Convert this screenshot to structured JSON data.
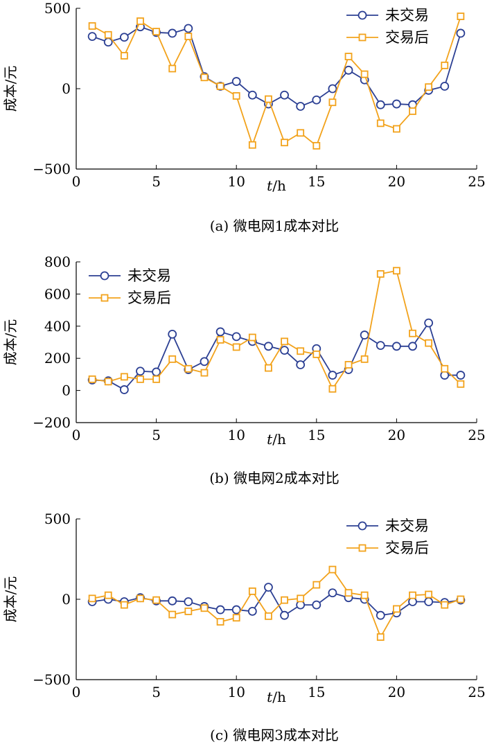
{
  "colors": {
    "series_1": "#2b3f93",
    "series_2": "#f2a21b",
    "axis": "#000000"
  },
  "chart_data": [
    {
      "type": "line",
      "caption": "(a)  微电网1成本对比",
      "xlabel": "t/h",
      "xlabel_var": "t",
      "xlabel_unit": "/h",
      "ylabel": "成本/元",
      "xlim": [
        0,
        25
      ],
      "ylim": [
        -500,
        500
      ],
      "xticks": [
        0,
        5,
        10,
        15,
        20,
        25
      ],
      "yticks": [
        -500,
        0,
        500
      ],
      "legend_position": "top-right",
      "x": [
        1,
        2,
        3,
        4,
        5,
        6,
        7,
        8,
        9,
        10,
        11,
        12,
        13,
        14,
        15,
        16,
        17,
        18,
        19,
        20,
        21,
        22,
        23,
        24
      ],
      "series": [
        {
          "name": "未交易",
          "marker": "circle",
          "values": [
            325,
            290,
            320,
            385,
            350,
            345,
            375,
            75,
            15,
            45,
            -40,
            -95,
            -40,
            -110,
            -70,
            0,
            115,
            55,
            -100,
            -95,
            -100,
            -10,
            15,
            345
          ]
        },
        {
          "name": "交易后",
          "marker": "square",
          "values": [
            390,
            335,
            205,
            420,
            355,
            125,
            325,
            70,
            15,
            -45,
            -350,
            -65,
            -335,
            -275,
            -355,
            -85,
            200,
            90,
            -215,
            -250,
            -140,
            10,
            145,
            450
          ]
        }
      ]
    },
    {
      "type": "line",
      "caption": "(b)  微电网2成本对比",
      "xlabel": "t/h",
      "xlabel_var": "t",
      "xlabel_unit": "/h",
      "ylabel": "成本/元",
      "xlim": [
        0,
        25
      ],
      "ylim": [
        -200,
        800
      ],
      "xticks": [
        0,
        5,
        10,
        15,
        20,
        25
      ],
      "yticks": [
        -200,
        0,
        200,
        400,
        600,
        800
      ],
      "legend_position": "top-left",
      "x": [
        1,
        2,
        3,
        4,
        5,
        6,
        7,
        8,
        9,
        10,
        11,
        12,
        13,
        14,
        15,
        16,
        17,
        18,
        19,
        20,
        21,
        22,
        23,
        24
      ],
      "series": [
        {
          "name": "未交易",
          "marker": "circle",
          "values": [
            65,
            60,
            5,
            120,
            115,
            350,
            130,
            180,
            365,
            335,
            305,
            275,
            250,
            160,
            260,
            95,
            130,
            345,
            280,
            275,
            275,
            420,
            95,
            95
          ]
        },
        {
          "name": "交易后",
          "marker": "square",
          "values": [
            70,
            55,
            85,
            70,
            70,
            195,
            135,
            110,
            315,
            270,
            330,
            140,
            305,
            245,
            225,
            10,
            160,
            195,
            725,
            745,
            355,
            295,
            135,
            40
          ]
        }
      ]
    },
    {
      "type": "line",
      "caption": "(c)  微电网3成本对比",
      "xlabel": "t/h",
      "xlabel_var": "t",
      "xlabel_unit": "/h",
      "ylabel": "成本/元",
      "xlim": [
        0,
        25
      ],
      "ylim": [
        -500,
        500
      ],
      "xticks": [
        0,
        5,
        10,
        15,
        20,
        25
      ],
      "yticks": [
        -500,
        0,
        500
      ],
      "legend_position": "top-right",
      "x": [
        1,
        2,
        3,
        4,
        5,
        6,
        7,
        8,
        9,
        10,
        11,
        12,
        13,
        14,
        15,
        16,
        17,
        18,
        19,
        20,
        21,
        22,
        23,
        24
      ],
      "series": [
        {
          "name": "未交易",
          "marker": "circle",
          "values": [
            -15,
            0,
            -15,
            10,
            -10,
            -10,
            -15,
            -45,
            -65,
            -65,
            -75,
            75,
            -100,
            -35,
            -35,
            40,
            10,
            0,
            -100,
            -85,
            -15,
            -15,
            -20,
            -5
          ]
        },
        {
          "name": "交易后",
          "marker": "square",
          "values": [
            5,
            25,
            -35,
            5,
            -5,
            -95,
            -75,
            -55,
            -140,
            -115,
            50,
            -105,
            -5,
            5,
            90,
            185,
            40,
            25,
            -235,
            -60,
            25,
            30,
            -35,
            0
          ]
        }
      ]
    }
  ]
}
